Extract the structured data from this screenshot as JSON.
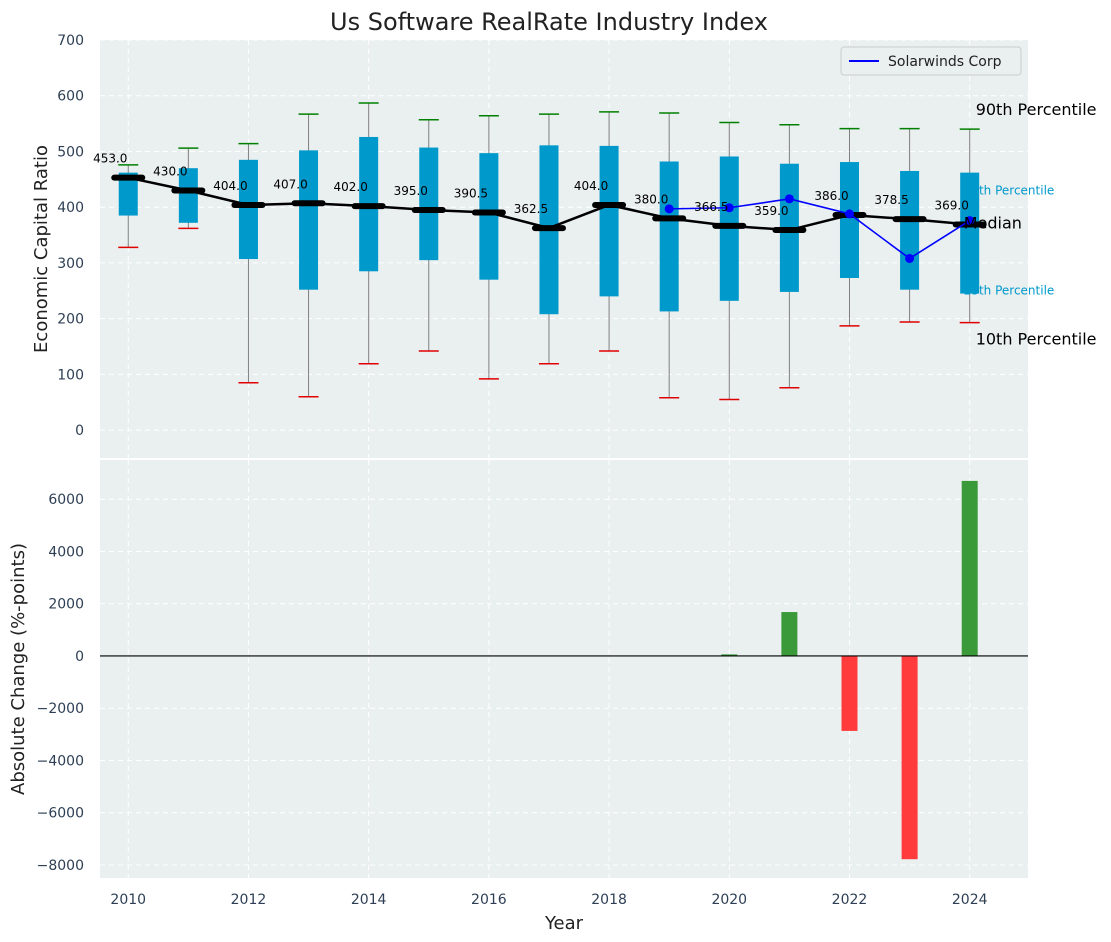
{
  "chart_data": [
    {
      "type": "box",
      "title": "Us Software RealRate Industry Index",
      "ylabel": "Economic Capital Ratio",
      "ylim": [
        -50,
        700
      ],
      "yticks": [
        0,
        100,
        200,
        300,
        400,
        500,
        600,
        700
      ],
      "grid": true,
      "legend": {
        "position": "top-right",
        "entries": [
          "Solarwinds Corp"
        ]
      },
      "annotations": [
        "90th Percentile",
        "75th Percentile",
        "Median",
        "25th Percentile",
        "10th Percentile"
      ],
      "years": [
        2010,
        2011,
        2012,
        2013,
        2014,
        2015,
        2016,
        2017,
        2018,
        2019,
        2020,
        2021,
        2022,
        2023,
        2024
      ],
      "p10": [
        328,
        362,
        85,
        60,
        119,
        142,
        92,
        119,
        142,
        58,
        55,
        76,
        187,
        194,
        193
      ],
      "p25": [
        385,
        372,
        307,
        252,
        285,
        305,
        270,
        208,
        240,
        213,
        232,
        248,
        273,
        252,
        245
      ],
      "median": [
        453.0,
        430.0,
        404.0,
        407.0,
        402.0,
        395.0,
        390.5,
        362.5,
        404.0,
        380.0,
        366.5,
        359.0,
        386.0,
        378.5,
        369.0
      ],
      "median_labels": [
        "453.0",
        "430.0",
        "404.0",
        "407.0",
        "402.0",
        "395.0",
        "390.5",
        "362.5",
        "404.0",
        "380.0",
        "366.5",
        "359.0",
        "386.0",
        "378.5",
        "369.0"
      ],
      "p75": [
        462,
        470,
        485,
        502,
        526,
        507,
        497,
        511,
        510,
        482,
        491,
        478,
        481,
        465,
        462
      ],
      "p90": [
        476,
        506,
        514,
        567,
        587,
        557,
        564,
        567,
        571,
        569,
        552,
        548,
        541,
        541,
        540
      ],
      "series": [
        {
          "name": "Solarwinds Corp",
          "x": [
            2019,
            2020,
            2021,
            2022,
            2023,
            2024
          ],
          "values": [
            397,
            399,
            415,
            388,
            308,
            376
          ],
          "color": "#0000ff"
        }
      ],
      "colors": {
        "box": "#0099cc",
        "median_line": "#000000",
        "p90_cap": "#008000",
        "p10_cap": "#e00000",
        "whisker": "#808080"
      }
    },
    {
      "type": "bar",
      "xlabel": "Year",
      "ylabel": "Absolute Change (%-points)",
      "ylim": [
        -8500,
        7500
      ],
      "yticks": [
        -8000,
        -6000,
        -4000,
        -2000,
        0,
        2000,
        4000,
        6000
      ],
      "xticks": [
        2010,
        2012,
        2014,
        2016,
        2018,
        2020,
        2022,
        2024
      ],
      "grid": true,
      "x": [
        2020,
        2021,
        2022,
        2023,
        2024
      ],
      "values": [
        60,
        1680,
        -2870,
        -7780,
        6700
      ],
      "colors": {
        "positive": "#3a9a3a",
        "negative": "#ff3b3b"
      }
    }
  ]
}
